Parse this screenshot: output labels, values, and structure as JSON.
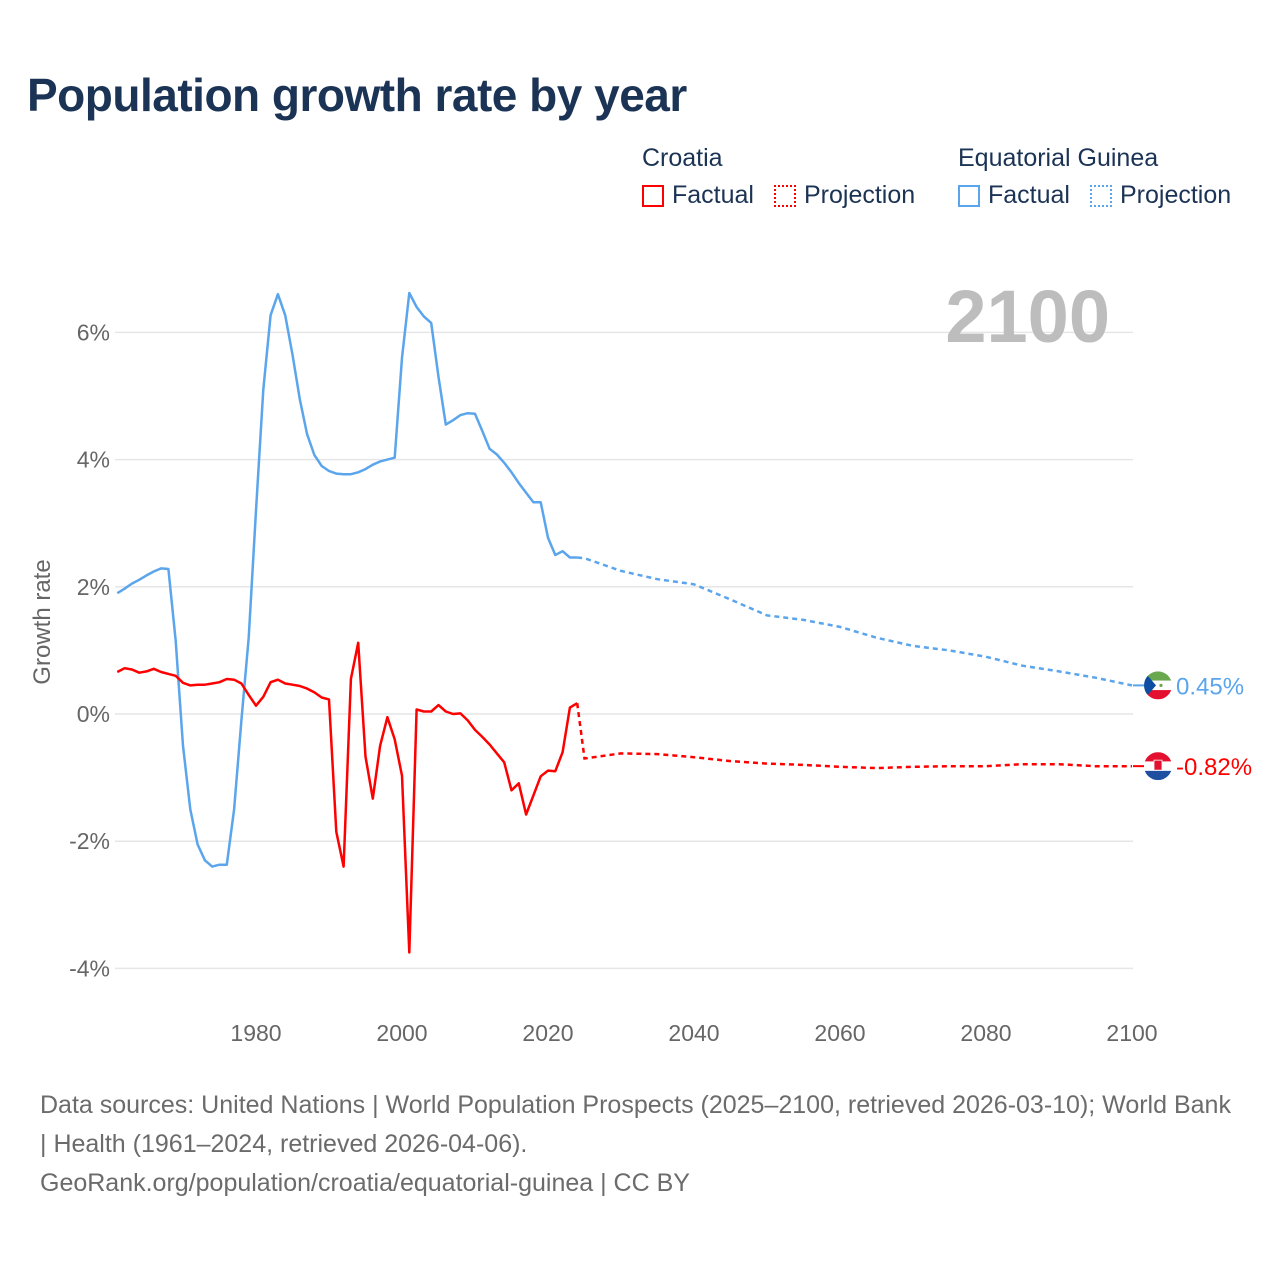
{
  "title": "Population growth rate by year",
  "legend": {
    "groups": [
      {
        "name": "Croatia",
        "factual": "Factual",
        "projection": "Projection",
        "color": "#ff0000"
      },
      {
        "name": "Equatorial Guinea",
        "factual": "Factual",
        "projection": "Projection",
        "color": "#5aa5ec"
      }
    ]
  },
  "footer": {
    "line1": "Data sources: United Nations | World Population Prospects (2025–2100, retrieved 2026-03-10); World Bank | Health (1961–2024, retrieved 2026-04-06).",
    "line2": "GeoRank.org/population/croatia/equatorial-guinea | CC BY"
  },
  "chart_data": {
    "type": "line",
    "title": "Population growth rate by year",
    "xlabel": "",
    "ylabel": "Growth rate",
    "xlim": [
      1961,
      2100
    ],
    "ylim": [
      -4.6,
      7.0
    ],
    "x_ticks": [
      1980,
      2000,
      2020,
      2040,
      2060,
      2080,
      2100
    ],
    "y_ticks": [
      -4,
      -2,
      0,
      2,
      4,
      6
    ],
    "y_tick_labels": [
      "-4%",
      "-2%",
      "0%",
      "2%",
      "4%",
      "6%"
    ],
    "x_tick_labels": [
      "1980",
      "2000",
      "2020",
      "2040",
      "2060",
      "2080",
      "2100"
    ],
    "grid": true,
    "year_label": "2100",
    "series": [
      {
        "name": "Equatorial Guinea",
        "color": "#5aa5ec",
        "end_label": "0.45%",
        "factual": {
          "x": [
            1961,
            1962,
            1963,
            1964,
            1965,
            1966,
            1967,
            1968,
            1969,
            1970,
            1971,
            1972,
            1973,
            1974,
            1975,
            1976,
            1977,
            1978,
            1979,
            1980,
            1981,
            1982,
            1983,
            1984,
            1985,
            1986,
            1987,
            1988,
            1989,
            1990,
            1991,
            1992,
            1993,
            1994,
            1995,
            1996,
            1997,
            1998,
            1999,
            2000,
            2001,
            2002,
            2003,
            2004,
            2005,
            2006,
            2007,
            2008,
            2009,
            2010,
            2011,
            2012,
            2013,
            2014,
            2015,
            2016,
            2017,
            2018,
            2019,
            2020,
            2021,
            2022,
            2023,
            2024
          ],
          "y": [
            1.9,
            1.97,
            2.05,
            2.11,
            2.18,
            2.24,
            2.29,
            2.28,
            1.15,
            -0.5,
            -1.5,
            -2.05,
            -2.3,
            -2.4,
            -2.37,
            -2.37,
            -1.5,
            -0.1,
            1.2,
            3.2,
            5.1,
            6.27,
            6.6,
            6.27,
            5.65,
            4.95,
            4.4,
            4.07,
            3.9,
            3.82,
            3.78,
            3.77,
            3.77,
            3.8,
            3.85,
            3.92,
            3.97,
            4.0,
            4.03,
            5.6,
            6.62,
            6.4,
            6.25,
            6.15,
            5.3,
            4.55,
            4.62,
            4.7,
            4.73,
            4.72,
            4.45,
            4.17,
            4.08,
            3.95,
            3.8,
            3.63,
            3.48,
            3.33,
            3.33,
            2.77,
            2.5,
            2.56,
            2.46,
            2.46
          ]
        },
        "projection": {
          "x": [
            2024,
            2025,
            2030,
            2035,
            2040,
            2045,
            2050,
            2055,
            2060,
            2065,
            2070,
            2075,
            2080,
            2085,
            2090,
            2095,
            2100
          ],
          "y": [
            2.46,
            2.45,
            2.25,
            2.12,
            2.04,
            1.8,
            1.55,
            1.48,
            1.37,
            1.2,
            1.07,
            1.0,
            0.9,
            0.76,
            0.67,
            0.57,
            0.45
          ]
        }
      },
      {
        "name": "Croatia",
        "color": "#ff0000",
        "end_label": "-0.82%",
        "factual": {
          "x": [
            1961,
            1962,
            1963,
            1964,
            1965,
            1966,
            1967,
            1968,
            1969,
            1970,
            1971,
            1972,
            1973,
            1974,
            1975,
            1976,
            1977,
            1978,
            1979,
            1980,
            1981,
            1982,
            1983,
            1984,
            1985,
            1986,
            1987,
            1988,
            1989,
            1990,
            1991,
            1992,
            1993,
            1994,
            1995,
            1996,
            1997,
            1998,
            1999,
            2000,
            2001,
            2002,
            2003,
            2004,
            2005,
            2006,
            2007,
            2008,
            2009,
            2010,
            2011,
            2012,
            2013,
            2014,
            2015,
            2016,
            2017,
            2018,
            2019,
            2020,
            2021,
            2022,
            2023,
            2024
          ],
          "y": [
            0.66,
            0.72,
            0.7,
            0.65,
            0.67,
            0.71,
            0.66,
            0.63,
            0.6,
            0.49,
            0.45,
            0.46,
            0.46,
            0.48,
            0.5,
            0.55,
            0.54,
            0.48,
            0.3,
            0.13,
            0.27,
            0.5,
            0.54,
            0.48,
            0.46,
            0.44,
            0.4,
            0.34,
            0.26,
            0.23,
            -1.85,
            -2.4,
            0.55,
            1.12,
            -0.67,
            -1.33,
            -0.5,
            -0.05,
            -0.4,
            -0.97,
            -3.75,
            0.07,
            0.04,
            0.04,
            0.14,
            0.04,
            0.0,
            0.01,
            -0.1,
            -0.25,
            -0.36,
            -0.48,
            -0.62,
            -0.76,
            -1.2,
            -1.09,
            -1.58,
            -1.28,
            -0.98,
            -0.89,
            -0.9,
            -0.6,
            0.1,
            0.17
          ]
        },
        "projection": {
          "x": [
            2024,
            2025,
            2030,
            2035,
            2040,
            2045,
            2050,
            2055,
            2060,
            2065,
            2070,
            2075,
            2080,
            2085,
            2090,
            2095,
            2100
          ],
          "y": [
            0.17,
            -0.7,
            -0.62,
            -0.63,
            -0.68,
            -0.74,
            -0.78,
            -0.8,
            -0.83,
            -0.85,
            -0.83,
            -0.82,
            -0.82,
            -0.79,
            -0.79,
            -0.82,
            -0.82
          ]
        }
      }
    ]
  }
}
